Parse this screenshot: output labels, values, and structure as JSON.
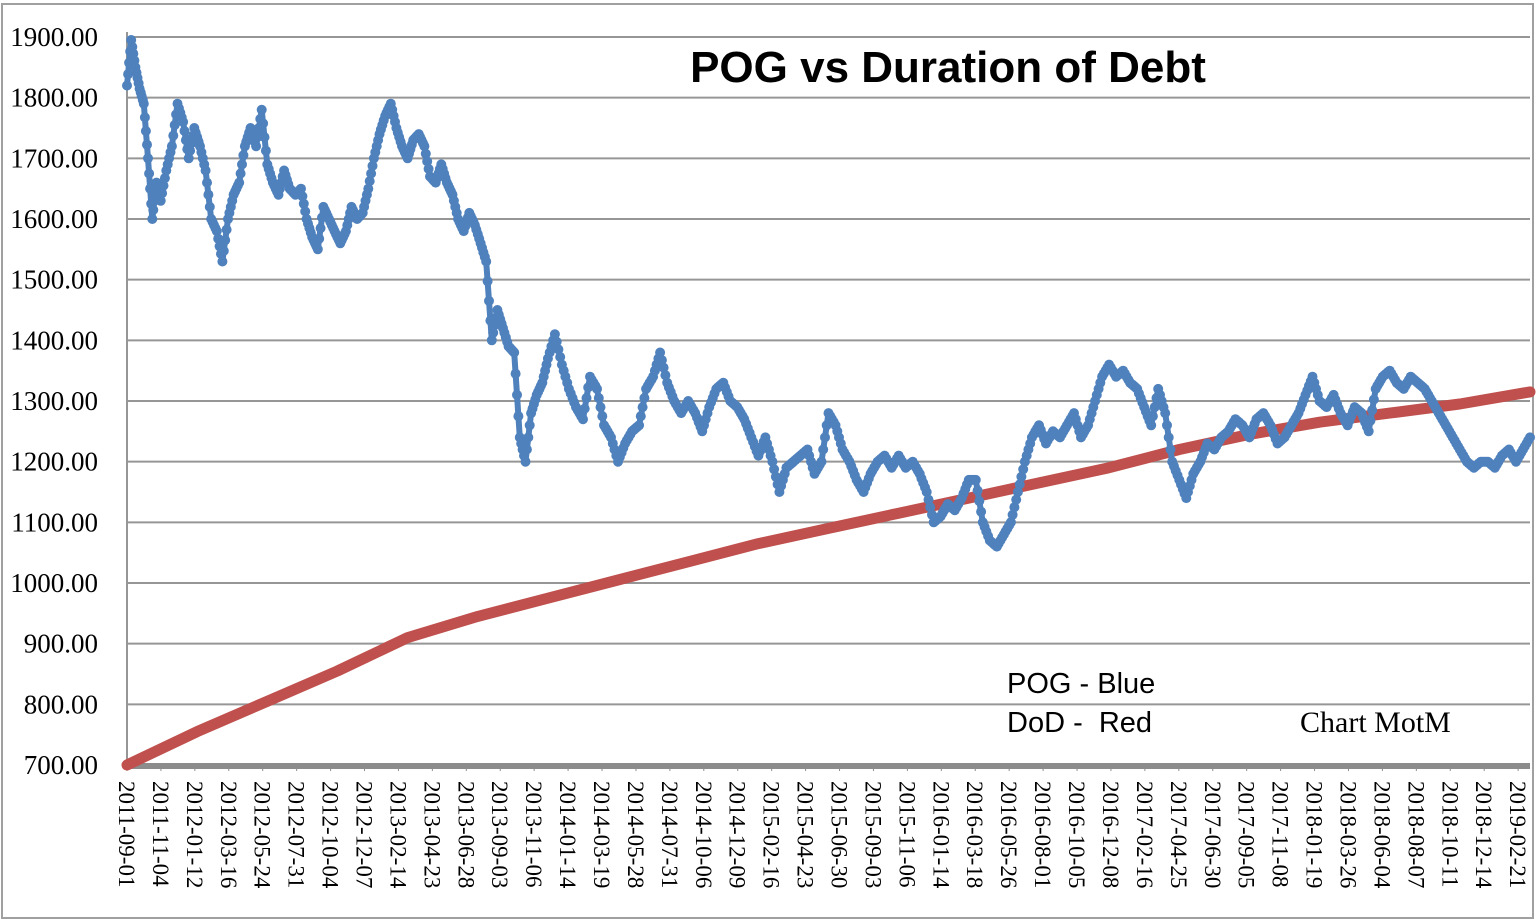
{
  "chart_data": {
    "type": "line",
    "title": "POG vs Duration of Debt",
    "xlabel": "",
    "ylabel": "",
    "ylim": [
      700,
      1900
    ],
    "grid": true,
    "y_ticks": [
      "700.00",
      "800.00",
      "900.00",
      "1000.00",
      "1100.00",
      "1200.00",
      "1300.00",
      "1400.00",
      "1500.00",
      "1600.00",
      "1700.00",
      "1800.00",
      "1900.00"
    ],
    "x_ticks": [
      "2011-09-01",
      "2011-11-04",
      "2012-01-12",
      "2012-03-16",
      "2012-05-24",
      "2012-07-31",
      "2012-10-04",
      "2012-12-07",
      "2013-02-14",
      "2013-04-23",
      "2013-06-28",
      "2013-09-03",
      "2013-11-06",
      "2014-01-14",
      "2014-03-19",
      "2014-05-28",
      "2014-07-31",
      "2014-10-06",
      "2014-12-09",
      "2015-02-16",
      "2015-04-23",
      "2015-06-30",
      "2015-09-03",
      "2015-11-06",
      "2016-01-14",
      "2016-03-18",
      "2016-05-26",
      "2016-08-01",
      "2016-10-05",
      "2016-12-08",
      "2017-02-16",
      "2017-04-25",
      "2017-06-30",
      "2017-09-05",
      "2017-11-08",
      "2018-01-19",
      "2018-03-26",
      "2018-06-04",
      "2018-08-07",
      "2018-10-11",
      "2018-12-14",
      "2019-02-21"
    ],
    "annotations": [
      {
        "text": "POG - Blue"
      },
      {
        "text": "DoD -  Red"
      },
      {
        "text": "Chart MotM"
      }
    ],
    "series": [
      {
        "name": "POG",
        "color": "#4f81bd",
        "marker": "circle",
        "x_frac": [
          0.0,
          0.003,
          0.006,
          0.009,
          0.012,
          0.015,
          0.018,
          0.021,
          0.024,
          0.028,
          0.032,
          0.036,
          0.04,
          0.044,
          0.048,
          0.052,
          0.056,
          0.06,
          0.064,
          0.068,
          0.072,
          0.076,
          0.08,
          0.084,
          0.088,
          0.092,
          0.096,
          0.1,
          0.104,
          0.108,
          0.112,
          0.116,
          0.12,
          0.124,
          0.128,
          0.132,
          0.136,
          0.14,
          0.144,
          0.148,
          0.152,
          0.156,
          0.16,
          0.164,
          0.168,
          0.172,
          0.176,
          0.18,
          0.184,
          0.188,
          0.192,
          0.196,
          0.2,
          0.204,
          0.208,
          0.212,
          0.216,
          0.22,
          0.224,
          0.228,
          0.232,
          0.236,
          0.24,
          0.244,
          0.248,
          0.252,
          0.256,
          0.26,
          0.264,
          0.268,
          0.272,
          0.276,
          0.28,
          0.284,
          0.288,
          0.292,
          0.296,
          0.3,
          0.305,
          0.31,
          0.315,
          0.32,
          0.325,
          0.33,
          0.335,
          0.34,
          0.345,
          0.35,
          0.355,
          0.36,
          0.365,
          0.37,
          0.375,
          0.38,
          0.385,
          0.39,
          0.395,
          0.4,
          0.405,
          0.41,
          0.415,
          0.42,
          0.425,
          0.43,
          0.435,
          0.44,
          0.445,
          0.45,
          0.455,
          0.46,
          0.465,
          0.47,
          0.475,
          0.48,
          0.485,
          0.49,
          0.495,
          0.5,
          0.505,
          0.51,
          0.515,
          0.52,
          0.525,
          0.53,
          0.535,
          0.54,
          0.545,
          0.55,
          0.555,
          0.56,
          0.565,
          0.57,
          0.575,
          0.58,
          0.585,
          0.59,
          0.595,
          0.6,
          0.605,
          0.61,
          0.615,
          0.62,
          0.625,
          0.63,
          0.635,
          0.64,
          0.645,
          0.65,
          0.655,
          0.66,
          0.665,
          0.67,
          0.675,
          0.68,
          0.685,
          0.69,
          0.695,
          0.7,
          0.705,
          0.71,
          0.715,
          0.72,
          0.725,
          0.73,
          0.735,
          0.74,
          0.745,
          0.75,
          0.755,
          0.76,
          0.765,
          0.77,
          0.775,
          0.78,
          0.785,
          0.79,
          0.795,
          0.8,
          0.805,
          0.81,
          0.815,
          0.82,
          0.825,
          0.83,
          0.835,
          0.84,
          0.845,
          0.85,
          0.855,
          0.86,
          0.865,
          0.87,
          0.875,
          0.88,
          0.885,
          0.89,
          0.895,
          0.9,
          0.905,
          0.91,
          0.915,
          0.92,
          0.925,
          0.93,
          0.935,
          0.94,
          0.945,
          0.95,
          0.955,
          0.96,
          0.965,
          0.97,
          0.975,
          0.98,
          0.985,
          0.99,
          0.995,
          1.0
        ],
        "values": [
          1820,
          1895,
          1850,
          1815,
          1790,
          1700,
          1600,
          1660,
          1630,
          1680,
          1720,
          1790,
          1760,
          1700,
          1750,
          1720,
          1680,
          1600,
          1580,
          1530,
          1600,
          1640,
          1660,
          1720,
          1750,
          1720,
          1780,
          1690,
          1660,
          1640,
          1680,
          1650,
          1640,
          1650,
          1600,
          1570,
          1550,
          1620,
          1600,
          1580,
          1560,
          1580,
          1620,
          1600,
          1610,
          1650,
          1700,
          1740,
          1770,
          1790,
          1750,
          1720,
          1700,
          1730,
          1740,
          1720,
          1670,
          1660,
          1690,
          1660,
          1640,
          1600,
          1580,
          1610,
          1590,
          1560,
          1530,
          1400,
          1450,
          1420,
          1390,
          1380,
          1240,
          1200,
          1280,
          1310,
          1330,
          1370,
          1410,
          1360,
          1320,
          1290,
          1270,
          1340,
          1320,
          1260,
          1240,
          1200,
          1230,
          1250,
          1260,
          1320,
          1340,
          1380,
          1330,
          1300,
          1280,
          1300,
          1280,
          1250,
          1290,
          1320,
          1330,
          1300,
          1290,
          1270,
          1240,
          1210,
          1240,
          1200,
          1150,
          1190,
          1200,
          1210,
          1220,
          1180,
          1200,
          1280,
          1260,
          1220,
          1200,
          1170,
          1150,
          1180,
          1200,
          1210,
          1190,
          1210,
          1190,
          1200,
          1180,
          1150,
          1100,
          1110,
          1130,
          1120,
          1140,
          1170,
          1170,
          1100,
          1070,
          1060,
          1080,
          1100,
          1150,
          1200,
          1240,
          1260,
          1230,
          1250,
          1240,
          1260,
          1280,
          1240,
          1260,
          1300,
          1340,
          1360,
          1340,
          1350,
          1330,
          1320,
          1290,
          1260,
          1320,
          1280,
          1200,
          1170,
          1140,
          1180,
          1200,
          1230,
          1220,
          1240,
          1250,
          1270,
          1260,
          1240,
          1270,
          1280,
          1260,
          1230,
          1240,
          1260,
          1280,
          1310,
          1340,
          1300,
          1290,
          1310,
          1280,
          1260,
          1290,
          1280,
          1250,
          1320,
          1340,
          1350,
          1330,
          1320,
          1340,
          1330,
          1320,
          1300,
          1280,
          1260,
          1240,
          1220,
          1200,
          1190,
          1200,
          1200,
          1190,
          1210,
          1220,
          1200,
          1220,
          1240,
          1260,
          1290,
          1300,
          1330,
          1300,
          1310,
          1300,
          1280
        ]
      },
      {
        "name": "DoD",
        "color": "#c0504d",
        "x_frac": [
          0.0,
          0.05,
          0.1,
          0.15,
          0.2,
          0.25,
          0.3,
          0.35,
          0.4,
          0.45,
          0.5,
          0.55,
          0.6,
          0.65,
          0.7,
          0.75,
          0.8,
          0.85,
          0.9,
          0.95,
          1.0
        ],
        "values": [
          700,
          755,
          805,
          855,
          910,
          945,
          975,
          1005,
          1035,
          1065,
          1090,
          1115,
          1140,
          1165,
          1190,
          1220,
          1245,
          1265,
          1280,
          1295,
          1315
        ]
      }
    ]
  }
}
